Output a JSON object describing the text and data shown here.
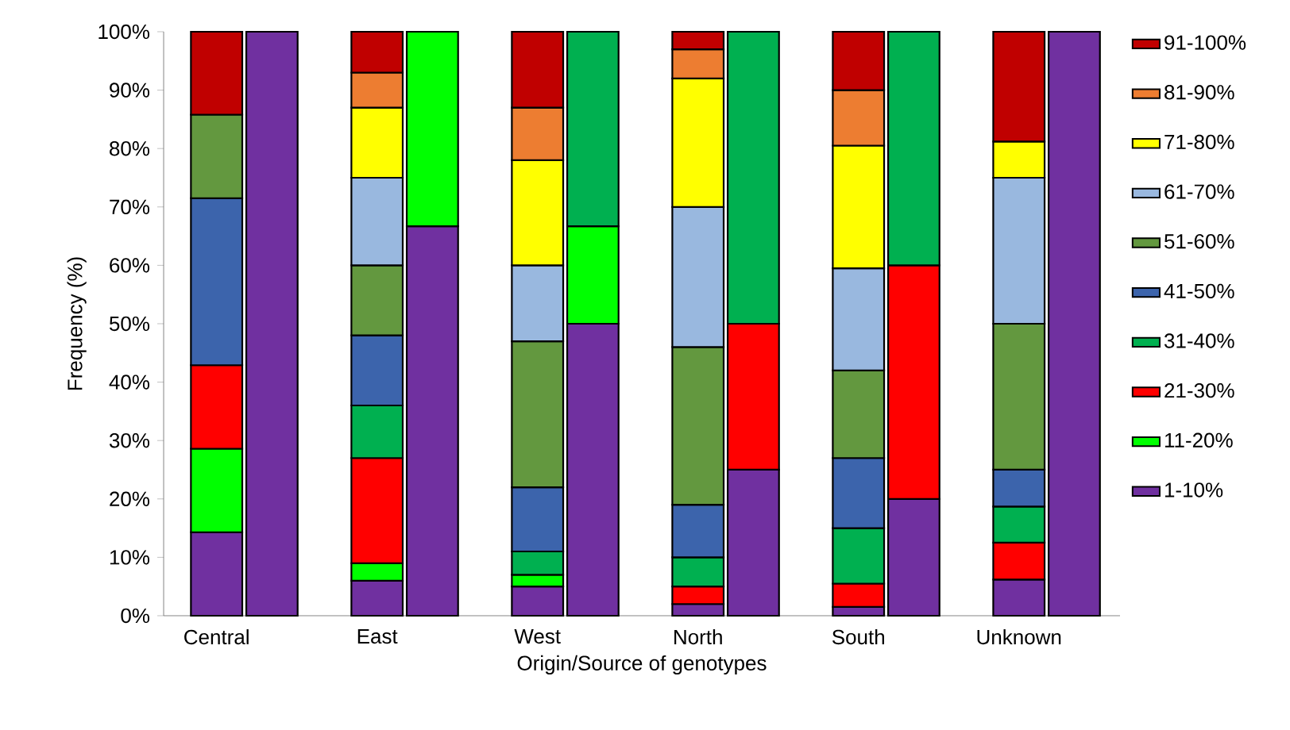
{
  "chart_data": {
    "type": "bar",
    "stacked": true,
    "xlabel": "Origin/Source of genotypes",
    "ylabel": "Frequency (%)",
    "categories": [
      "Central",
      null,
      "East",
      null,
      "West",
      null,
      "North",
      null,
      "South",
      null,
      "Unknown",
      null
    ],
    "ylim": [
      0,
      100
    ],
    "yticks": [
      {
        "value": 0,
        "label": "0%"
      },
      {
        "value": 10,
        "label": "10%"
      },
      {
        "value": 20,
        "label": "20%"
      },
      {
        "value": 30,
        "label": "30%"
      },
      {
        "value": 40,
        "label": "40%"
      },
      {
        "value": 50,
        "label": "50%"
      },
      {
        "value": 60,
        "label": "60%"
      },
      {
        "value": 70,
        "label": "70%"
      },
      {
        "value": 80,
        "label": "80%"
      },
      {
        "value": 90,
        "label": "90%"
      },
      {
        "value": 100,
        "label": "100%"
      }
    ],
    "legend": "right",
    "series": [
      {
        "name": "1-10%",
        "color": "#7030a0",
        "values": [
          14.3,
          100,
          6,
          66.7,
          5,
          50,
          2,
          25,
          1.5,
          20,
          6.2,
          100
        ]
      },
      {
        "name": "11-20%",
        "color": "#00ff00",
        "values": [
          14.3,
          null,
          3,
          33.3,
          2,
          16.7,
          null,
          null,
          null,
          null,
          null,
          null
        ]
      },
      {
        "name": "21-30%",
        "color": "#ff0000",
        "values": [
          14.3,
          null,
          18,
          null,
          null,
          null,
          3,
          25,
          4,
          40,
          6.3,
          null
        ]
      },
      {
        "name": "31-40%",
        "color": "#00b050",
        "values": [
          null,
          null,
          9,
          null,
          4,
          33.3,
          5,
          50,
          9.5,
          40,
          6.2,
          null
        ]
      },
      {
        "name": "41-50%",
        "color": "#3c64ac",
        "values": [
          28.6,
          null,
          12,
          null,
          11,
          null,
          9,
          null,
          12,
          null,
          6.3,
          null
        ]
      },
      {
        "name": "51-60%",
        "color": "#63983f",
        "values": [
          14.3,
          null,
          12,
          null,
          25,
          null,
          27,
          null,
          15,
          null,
          25,
          null
        ]
      },
      {
        "name": "61-70%",
        "color": "#99b8df",
        "values": [
          null,
          null,
          15,
          null,
          13,
          null,
          24,
          null,
          17.5,
          null,
          25,
          null
        ]
      },
      {
        "name": "71-80%",
        "color": "#ffff00",
        "values": [
          null,
          null,
          12,
          null,
          18,
          null,
          22,
          null,
          21,
          null,
          6.2,
          null
        ]
      },
      {
        "name": "81-90%",
        "color": "#ed7d31",
        "values": [
          null,
          null,
          6,
          null,
          9,
          null,
          5,
          null,
          9.5,
          null,
          null,
          null
        ]
      },
      {
        "name": "91-100%",
        "color": "#c00000",
        "values": [
          14.2,
          null,
          7,
          null,
          13,
          null,
          3,
          null,
          10,
          null,
          18.8,
          null
        ]
      }
    ]
  }
}
